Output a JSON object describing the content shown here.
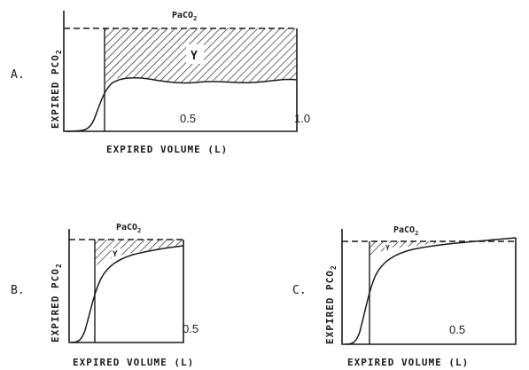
{
  "figure": {
    "panels": [
      {
        "id": "A",
        "letter": "A.",
        "ylabel_main": "EXPIRED PCO",
        "ylabel_sub": "2",
        "xlabel": "EXPIRED VOLUME (L)",
        "ticks": [
          "0.5",
          "1.0"
        ],
        "arterial_label_main": "PaCO",
        "arterial_label_sub": "2",
        "region_label": "Y"
      },
      {
        "id": "B",
        "letter": "B.",
        "ylabel_main": "EXPIRED PCO",
        "ylabel_sub": "2",
        "xlabel": "EXPIRED VOLUME (L)",
        "ticks": [
          "0.5"
        ],
        "arterial_label_main": "PaCO",
        "arterial_label_sub": "2",
        "region_label": "Y"
      },
      {
        "id": "C",
        "letter": "C.",
        "ylabel_main": "EXPIRED PCO",
        "ylabel_sub": "2",
        "xlabel": "EXPIRED VOLUME (L)",
        "ticks": [
          "0.5"
        ],
        "arterial_label_main": "PaCO",
        "arterial_label_sub": "2",
        "region_label": "Y"
      }
    ]
  }
}
